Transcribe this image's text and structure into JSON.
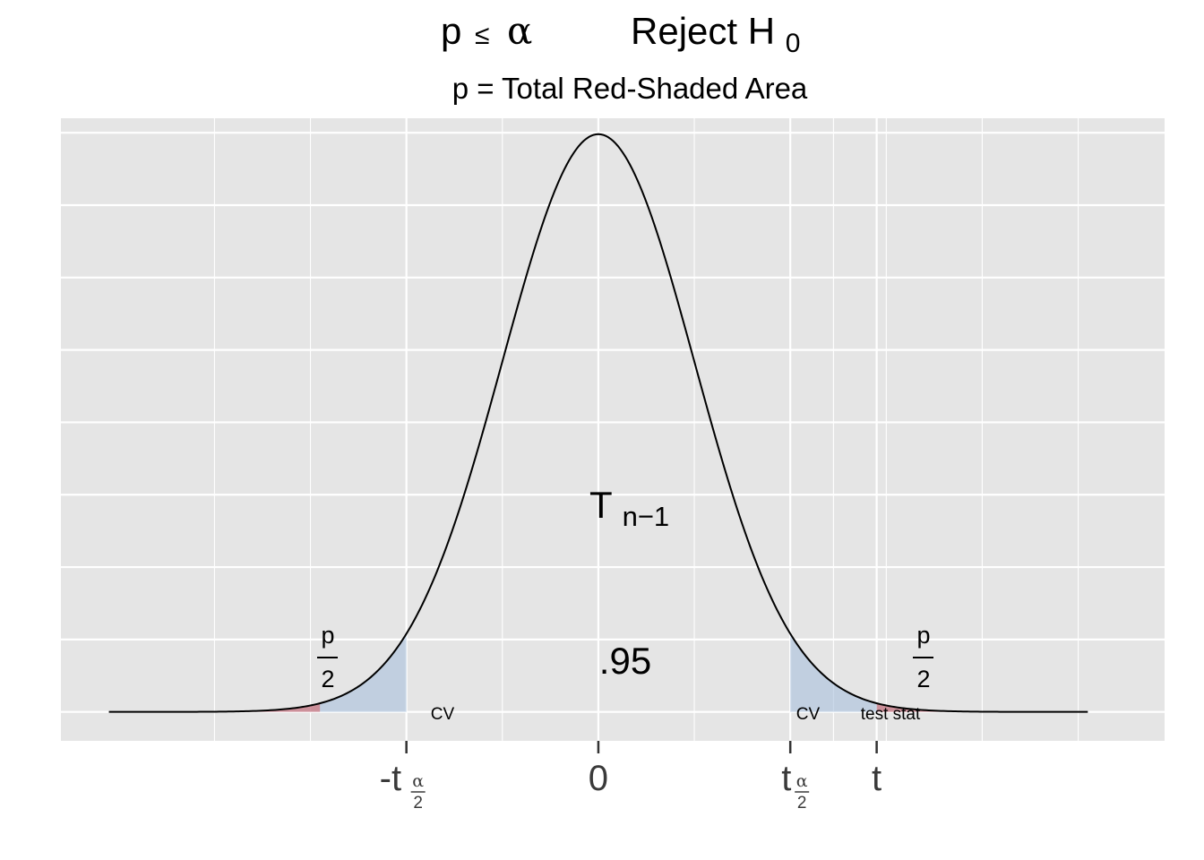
{
  "chart_data": {
    "type": "area",
    "title": {
      "left": "p",
      "relation": "≤",
      "alpha": "α",
      "right": "Reject H",
      "right_subscript": "0"
    },
    "subtitle": "p = Total Red-Shaded Area",
    "distribution": {
      "base": "T",
      "subscript": "n−1"
    },
    "central_area_label": ".95",
    "x_range": [
      -5.6,
      5.9
    ],
    "y_range": [
      -0.02,
      0.41
    ],
    "critical_value": 2.0,
    "test_statistic": 2.9,
    "curve_peak": 0.399,
    "x_ticks": [
      {
        "x": -2.0,
        "base": "-t",
        "sub_num": "α",
        "sub_den": "2"
      },
      {
        "x": 0,
        "base": "0"
      },
      {
        "x": 2.0,
        "base": "t",
        "sub_num": "α",
        "sub_den": "2"
      },
      {
        "x": 2.9,
        "base": "t"
      }
    ],
    "annotations": {
      "cv_left": "CV",
      "cv_right": "CV",
      "test_stat": "test stat",
      "p_half_num": "p",
      "p_half_den": "2"
    },
    "grid": true,
    "colors": {
      "panel": "#e5e5e5",
      "grid": "#ffffff",
      "red_tail": "#c2727f",
      "blue_region": "#a8c0dc",
      "curve": "#000000",
      "axis_tick": "#333333"
    },
    "fill_opacity": {
      "red_tail": 0.75,
      "blue_region": 0.6
    }
  }
}
